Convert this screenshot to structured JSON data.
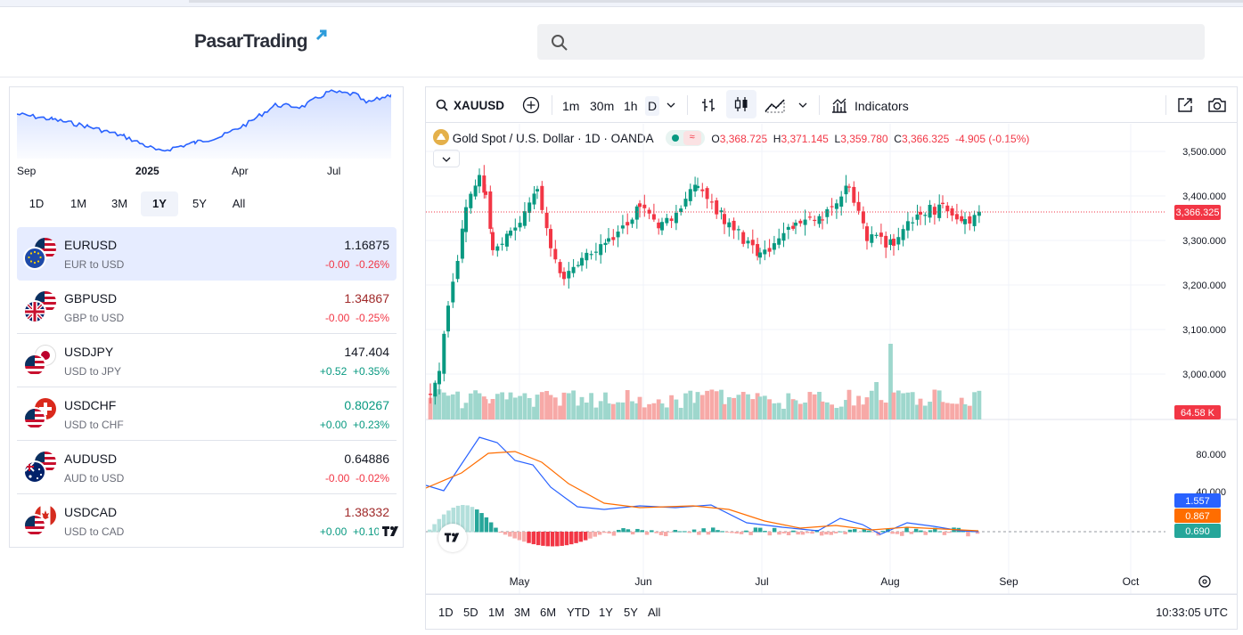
{
  "header": {
    "logo_text": "PasarTrading",
    "search_placeholder": ""
  },
  "left_panel": {
    "x_labels": [
      "Sep",
      "2025",
      "Apr",
      "Jul"
    ],
    "ranges": [
      "1D",
      "1M",
      "3M",
      "1Y",
      "5Y",
      "All"
    ],
    "active_range": "1Y",
    "pairs": [
      {
        "symbol": "EURUSD",
        "desc": "EUR to USD",
        "price": "1.16875",
        "change": "-0.00",
        "pct": "-0.26%"
      },
      {
        "symbol": "GBPUSD",
        "desc": "GBP to USD",
        "price": "1.34867",
        "change": "-0.00",
        "pct": "-0.25%"
      },
      {
        "symbol": "USDJPY",
        "desc": "USD to JPY",
        "price": "147.404",
        "change": "+0.52",
        "pct": "+0.35%"
      },
      {
        "symbol": "USDCHF",
        "desc": "USD to CHF",
        "price": "0.80267",
        "change": "+0.00",
        "pct": "+0.23%"
      },
      {
        "symbol": "AUDUSD",
        "desc": "AUD to USD",
        "price": "0.64886",
        "change": "-0.00",
        "pct": "-0.02%"
      },
      {
        "symbol": "USDCAD",
        "desc": "USD to CAD",
        "price": "1.38332",
        "change": "+0.00",
        "pct": "+0.10%"
      }
    ]
  },
  "chart": {
    "symbol": "XAUUSD",
    "intervals": [
      "1m",
      "30m",
      "1h",
      "D"
    ],
    "indicators_label": "Indicators",
    "legend_title": "Gold Spot / U.S. Dollar · 1D · OANDA",
    "o_label": "O",
    "o": "3,368.725",
    "h_label": "H",
    "h": "3,371.145",
    "l_label": "L",
    "l": "3,359.780",
    "c_label": "C",
    "c": "3,366.325",
    "change": "-4.905 (-0.15%)",
    "price_ticks": [
      "3,500.000",
      "3,400.000",
      "3,300.000",
      "3,200.000",
      "3,100.000",
      "3,000.000"
    ],
    "last_price": "3,366.325",
    "volume_label": "64.58 K",
    "macd_ticks": [
      "80.000",
      "40.000"
    ],
    "macd_values": [
      "1.557",
      "0.867",
      "0.690"
    ],
    "time_labels": [
      "May",
      "Jun",
      "Jul",
      "Aug",
      "Sep",
      "Oct"
    ],
    "bottom_ranges": [
      "1D",
      "5D",
      "1M",
      "3M",
      "6M",
      "YTD",
      "1Y",
      "5Y",
      "All"
    ],
    "clock": "10:33:05 UTC",
    "colors": {
      "up": "#089981",
      "down": "#f23645",
      "up_vol": "#9ed7cd",
      "down_vol": "#f7a9a7",
      "macd": "#2962ff",
      "signal": "#ff6d00"
    }
  }
}
